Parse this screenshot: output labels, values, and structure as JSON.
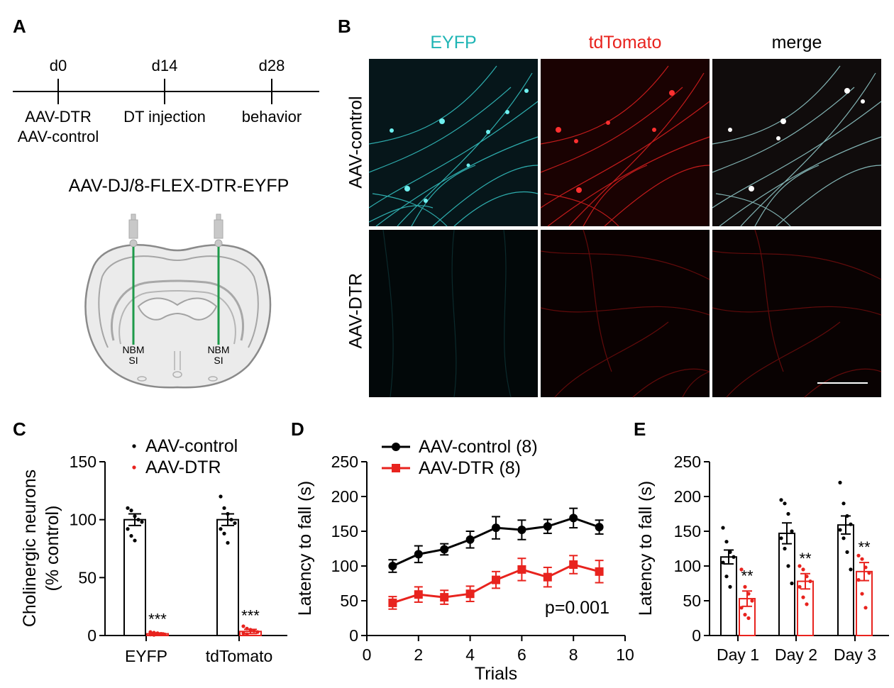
{
  "panelA": {
    "label": "A",
    "timeline": [
      {
        "day": "d0",
        "events": [
          "AAV-DTR",
          "AAV-control"
        ]
      },
      {
        "day": "d14",
        "events": [
          "DT injection"
        ]
      },
      {
        "day": "d28",
        "events": [
          "behavior"
        ]
      }
    ],
    "virus": "AAV-DJ/8-FLEX-DTR-EYFP",
    "region_left": [
      "NBM",
      "SI"
    ],
    "region_right": [
      "NBM",
      "SI"
    ]
  },
  "panelB": {
    "label": "B",
    "columns": [
      {
        "name": "EYFP",
        "color": "#1fb5b5"
      },
      {
        "name": "tdTomato",
        "color": "#e8231e"
      },
      {
        "name": "merge",
        "color": "#000000"
      }
    ],
    "rows": [
      "AAV-control",
      "AAV-DTR"
    ]
  },
  "panelC": {
    "label": "C",
    "chart_data": {
      "type": "bar",
      "ylabel_line1": "Cholinergic neurons",
      "ylabel_line2": "(% control)",
      "ylim": [
        0,
        150
      ],
      "yticks": [
        "0",
        "50",
        "100",
        "150"
      ],
      "categories": [
        "EYFP",
        "tdTomato"
      ],
      "series": [
        {
          "name": "AAV-control",
          "color": "#000000",
          "values": [
            100,
            100
          ],
          "sem": [
            5,
            5
          ]
        },
        {
          "name": "AAV-DTR",
          "color": "#e8231e",
          "values": [
            1.5,
            3.5
          ],
          "sem": [
            0.7,
            1.8
          ]
        }
      ],
      "annotations": [
        "***",
        "***"
      ]
    }
  },
  "panelD": {
    "label": "D",
    "chart_data": {
      "type": "line",
      "xlabel": "Trials",
      "ylabel": "Latency to fall (s)",
      "xlim": [
        0,
        10
      ],
      "ylim": [
        0,
        250
      ],
      "xticks": [
        "0",
        "2",
        "4",
        "6",
        "8",
        "10"
      ],
      "yticks": [
        "0",
        "50",
        "100",
        "150",
        "200",
        "250"
      ],
      "x": [
        1,
        2,
        3,
        4,
        5,
        6,
        7,
        8,
        9
      ],
      "series": [
        {
          "name": "AAV-control (8)",
          "color": "#000000",
          "marker": "circle",
          "values": [
            100,
            117,
            124,
            138,
            155,
            152,
            157,
            169,
            156
          ],
          "sem": [
            9,
            12,
            8,
            12,
            16,
            14,
            10,
            14,
            10
          ]
        },
        {
          "name": "AAV-DTR (8)",
          "color": "#e8231e",
          "marker": "square",
          "values": [
            47,
            59,
            55,
            60,
            80,
            95,
            84,
            102,
            92
          ],
          "sem": [
            9,
            11,
            10,
            11,
            12,
            16,
            14,
            13,
            16
          ]
        }
      ],
      "annotation": "p=0.001"
    }
  },
  "panelE": {
    "label": "E",
    "chart_data": {
      "type": "bar",
      "ylabel": "Latency to fall (s)",
      "ylim": [
        0,
        250
      ],
      "yticks": [
        "0",
        "50",
        "100",
        "150",
        "200",
        "250"
      ],
      "categories": [
        "Day 1",
        "Day 2",
        "Day 3"
      ],
      "series": [
        {
          "name": "AAV-control",
          "color": "#000000",
          "values": [
            113,
            147,
            159
          ],
          "sem": [
            10,
            15,
            13
          ]
        },
        {
          "name": "AAV-DTR",
          "color": "#e8231e",
          "values": [
            53,
            78,
            92
          ],
          "sem": [
            11,
            11,
            13
          ]
        }
      ],
      "annotations": [
        "**",
        "**",
        "**"
      ]
    }
  }
}
